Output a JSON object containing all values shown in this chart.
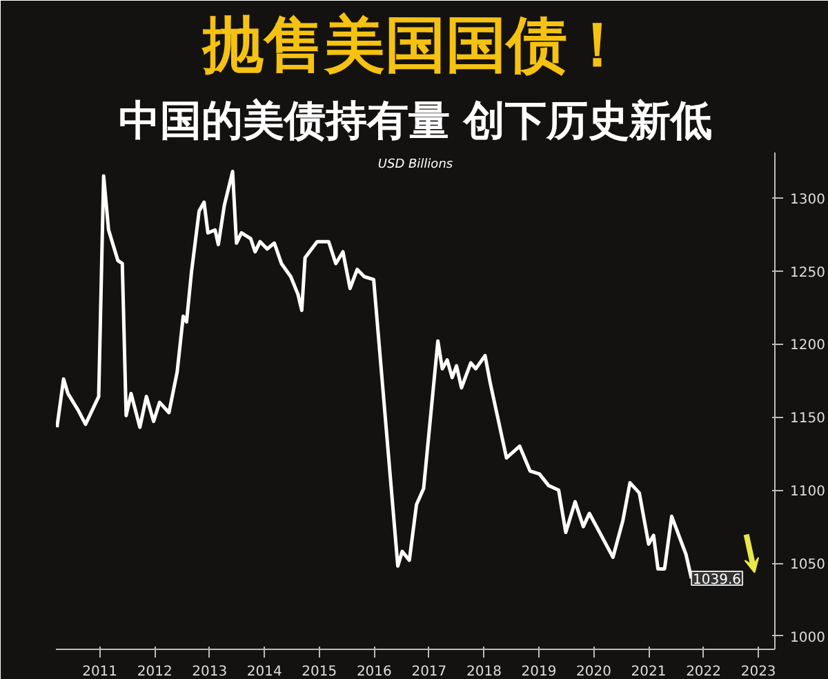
{
  "chart_data": {
    "type": "line",
    "title": "抛售美国国债！",
    "subtitle": "中国的美债持有量 创下历史新低",
    "annotations": [
      "USD Billions",
      {
        "text": "1039.6",
        "x": 2022.28,
        "y": 1039.6
      }
    ],
    "x": [
      2010.72,
      2010.84,
      2010.92,
      2011.1,
      2011.24,
      2011.48,
      2011.57,
      2011.66,
      2011.83,
      2011.91,
      2011.98,
      2012.07,
      2012.23,
      2012.35,
      2012.48,
      2012.59,
      2012.76,
      2012.91,
      2013.02,
      2013.08,
      2013.17,
      2013.31,
      2013.4,
      2013.47,
      2013.6,
      2013.66,
      2013.77,
      2013.92,
      2013.99,
      2014.08,
      2014.25,
      2014.33,
      2014.42,
      2014.55,
      2014.68,
      2014.81,
      2014.98,
      2015.11,
      2015.18,
      2015.24,
      2015.46,
      2015.67,
      2015.8,
      2015.93,
      2016.06,
      2016.19,
      2016.32,
      2016.49,
      2016.93,
      2017.01,
      2017.14,
      2017.27,
      2017.4,
      2017.66,
      2017.74,
      2017.83,
      2017.92,
      2018.0,
      2018.09,
      2018.26,
      2018.35,
      2018.52,
      2018.61,
      2018.91,
      2019.15,
      2019.34,
      2019.51,
      2019.68,
      2019.86,
      2019.99,
      2020.16,
      2020.31,
      2020.42,
      2020.55,
      2020.85,
      2021.03,
      2021.16,
      2021.33,
      2021.5,
      2021.59,
      2021.67,
      2021.79,
      2021.92,
      2022.07,
      2022.18,
      2022.28
    ],
    "series": [
      {
        "color": "#ffffff",
        "values": [
          1143,
          1176,
          1166,
          1155,
          1145,
          1164,
          1315,
          1278,
          1257,
          1255,
          1151,
          1166,
          1143,
          1164,
          1147,
          1160,
          1153,
          1181,
          1219,
          1215,
          1249,
          1291,
          1297,
          1276,
          1278,
          1268,
          1295,
          1318,
          1269,
          1276,
          1272,
          1263,
          1270,
          1265,
          1269,
          1255,
          1246,
          1234,
          1223,
          1259,
          1270,
          1270,
          1255,
          1263,
          1238,
          1251,
          1246,
          1244,
          1048,
          1058,
          1052,
          1090,
          1101,
          1202,
          1183,
          1189,
          1177,
          1185,
          1170,
          1187,
          1183,
          1192,
          1174,
          1122,
          1130,
          1113,
          1111,
          1103,
          1100,
          1071,
          1092,
          1075,
          1084,
          1075,
          1054,
          1079,
          1105,
          1098,
          1063,
          1069,
          1046,
          1046,
          1082,
          1067,
          1056,
          1039.6
        ]
      }
    ],
    "xlim": [
      2010.7,
      2023.8
    ],
    "xticks": [
      {
        "value": 2011.5,
        "label": "2011"
      },
      {
        "value": 2012.5,
        "label": "2012"
      },
      {
        "value": 2013.5,
        "label": "2013"
      },
      {
        "value": 2014.5,
        "label": "2014"
      },
      {
        "value": 2015.5,
        "label": "2015"
      },
      {
        "value": 2016.5,
        "label": "2016"
      },
      {
        "value": 2017.5,
        "label": "2017"
      },
      {
        "value": 2018.5,
        "label": "2018"
      },
      {
        "value": 2019.5,
        "label": "2019"
      },
      {
        "value": 2020.5,
        "label": "2020"
      },
      {
        "value": 2021.5,
        "label": "2021"
      },
      {
        "value": 2022.5,
        "label": "2022"
      },
      {
        "value": 2023.5,
        "label": "2023"
      }
    ],
    "ylim": [
      991,
      1331
    ],
    "yticks": [
      1000,
      1050,
      1100,
      1150,
      1200,
      1250,
      1300
    ],
    "grid": false,
    "line_style": "solid",
    "marker": "none"
  }
}
